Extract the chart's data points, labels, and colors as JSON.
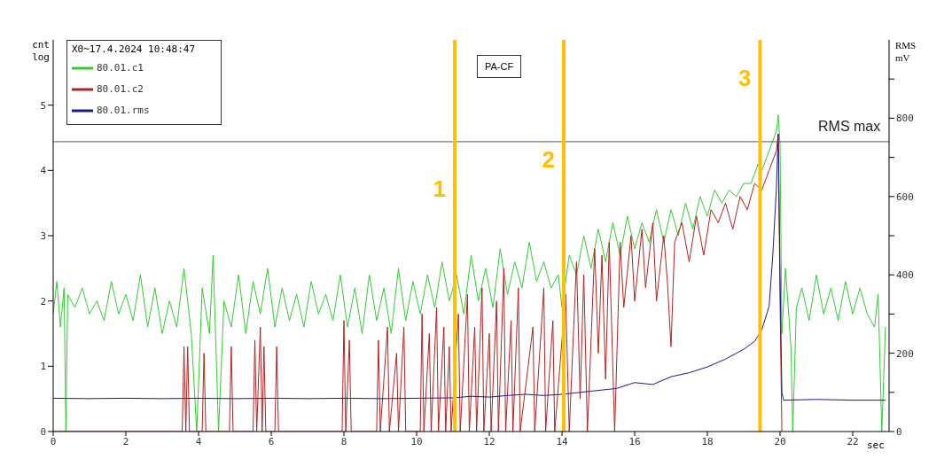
{
  "chart_data": {
    "type": "line",
    "title": "PA-CF",
    "xlabel": "sec",
    "ylabel": "cnt log",
    "y2label": "RMS mV",
    "legend_title": "X0~17.4.2024 10:48:47",
    "legend": "top left",
    "marker": "none",
    "line_style": "solid",
    "xlim": [
      0,
      23
    ],
    "xticks": [
      0,
      2,
      4,
      6,
      8,
      10,
      12,
      14,
      16,
      18,
      20,
      22
    ],
    "ylim": [
      0,
      6
    ],
    "yticks": [
      0,
      1,
      2,
      3,
      4,
      5
    ],
    "y2lim": [
      0,
      1000
    ],
    "y2ticks": [
      0,
      {
        "value": 100,
        "label": null
      },
      200,
      {
        "value": 300,
        "label": null
      },
      400,
      {
        "value": 500,
        "label": null
      },
      600,
      {
        "value": 700,
        "label": null
      },
      800,
      {
        "value": 900,
        "label": null
      }
    ],
    "series": [
      {
        "name": "80.01.c1",
        "color": "#33cc33",
        "x": [
          0,
          0.1,
          0.2,
          0.3,
          0.35,
          0.4,
          0.6,
          0.8,
          1.0,
          1.2,
          1.4,
          1.6,
          1.8,
          2.0,
          2.2,
          2.4,
          2.6,
          2.8,
          3.0,
          3.2,
          3.4,
          3.6,
          3.8,
          3.95,
          4.1,
          4.3,
          4.4,
          4.55,
          4.7,
          4.9,
          5.1,
          5.3,
          5.5,
          5.7,
          5.9,
          6.1,
          6.3,
          6.5,
          6.7,
          6.9,
          7.1,
          7.3,
          7.5,
          7.7,
          7.9,
          8.1,
          8.3,
          8.5,
          8.7,
          8.9,
          9.1,
          9.3,
          9.5,
          9.7,
          9.9,
          10.1,
          10.3,
          10.5,
          10.7,
          10.9,
          11.1,
          11.3,
          11.5,
          11.7,
          11.9,
          12.1,
          12.3,
          12.5,
          12.7,
          12.9,
          13.1,
          13.3,
          13.5,
          13.7,
          13.9,
          14.0,
          14.2,
          14.4,
          14.6,
          14.8,
          15.0,
          15.2,
          15.4,
          15.6,
          15.8,
          16.0,
          16.2,
          16.4,
          16.6,
          16.8,
          17.0,
          17.2,
          17.4,
          17.6,
          17.8,
          18.0,
          18.2,
          18.4,
          18.6,
          18.8,
          19.0,
          19.2,
          19.4,
          19.5,
          19.7,
          19.9,
          19.95,
          20.0,
          20.05,
          20.15,
          20.3,
          20.35,
          20.45,
          20.6,
          20.8,
          21.0,
          21.2,
          21.4,
          21.6,
          21.8,
          22.0,
          22.2,
          22.4,
          22.6,
          22.7,
          22.8,
          22.9
        ],
        "values": [
          1.8,
          2.3,
          1.6,
          2.2,
          0,
          2.1,
          1.9,
          2.2,
          1.8,
          2.0,
          1.7,
          2.3,
          1.8,
          2.1,
          1.7,
          2.4,
          1.6,
          2.2,
          1.5,
          2.0,
          1.6,
          2.5,
          1.5,
          0,
          2.2,
          1.5,
          2.7,
          0,
          2.0,
          1.6,
          2.4,
          1.5,
          2.3,
          1.8,
          2.5,
          1.6,
          2.2,
          1.7,
          2.1,
          1.6,
          2.3,
          1.8,
          2.1,
          1.7,
          2.4,
          1.6,
          2.2,
          1.5,
          2.4,
          1.7,
          2.2,
          1.5,
          2.5,
          1.7,
          2.3,
          1.8,
          2.4,
          1.9,
          2.6,
          2.0,
          2.4,
          1.8,
          2.7,
          2.0,
          2.5,
          1.9,
          2.8,
          2.1,
          2.6,
          2.2,
          2.9,
          2.3,
          2.6,
          2.2,
          2.4,
          1.9,
          2.7,
          2.4,
          3.0,
          2.5,
          3.1,
          2.6,
          3.2,
          2.7,
          3.3,
          2.8,
          3.2,
          2.9,
          3.4,
          2.9,
          3.4,
          3.0,
          3.5,
          3.1,
          3.6,
          3.3,
          3.7,
          3.5,
          3.7,
          3.6,
          3.8,
          3.8,
          4.1,
          4.0,
          4.3,
          4.6,
          4.85,
          4.4,
          1.5,
          2.5,
          1.3,
          0,
          1.9,
          2.2,
          1.7,
          2.4,
          1.8,
          2.2,
          1.7,
          2.3,
          1.8,
          2.2,
          1.8,
          1.6,
          2.1,
          0,
          1.6
        ]
      },
      {
        "name": "80.01.c2",
        "color": "#b22222",
        "x": [
          0,
          3.55,
          3.6,
          3.65,
          3.7,
          3.75,
          4.1,
          4.15,
          4.2,
          4.85,
          4.9,
          4.95,
          5.5,
          5.55,
          5.6,
          5.7,
          5.75,
          5.8,
          5.85,
          6.1,
          6.15,
          6.2,
          7.95,
          8.0,
          8.05,
          8.15,
          8.2,
          8.9,
          8.95,
          9.0,
          9.2,
          9.25,
          9.45,
          9.5,
          9.65,
          9.7,
          10.1,
          10.15,
          10.2,
          10.35,
          10.4,
          10.55,
          10.6,
          10.75,
          10.8,
          10.9,
          10.95,
          11.15,
          11.2,
          11.4,
          11.45,
          11.6,
          11.65,
          11.8,
          11.85,
          12.0,
          12.05,
          12.2,
          12.25,
          12.4,
          12.45,
          12.6,
          12.65,
          12.8,
          12.85,
          13.2,
          13.25,
          13.5,
          13.55,
          13.75,
          13.8,
          14.1,
          14.2,
          14.4,
          14.5,
          14.6,
          14.7,
          14.9,
          15.0,
          15.1,
          15.2,
          15.3,
          15.45,
          15.6,
          15.7,
          15.9,
          16.0,
          16.2,
          16.3,
          16.5,
          16.6,
          16.8,
          16.9,
          17.0,
          17.1,
          17.3,
          17.5,
          17.7,
          17.9,
          18.1,
          18.3,
          18.5,
          18.7,
          18.9,
          19.1,
          19.3,
          19.5,
          19.7,
          19.9,
          19.95,
          20.0,
          20.05
        ],
        "values": [
          0,
          0,
          1.3,
          0,
          1.3,
          0,
          0,
          1.2,
          0,
          0,
          1.3,
          0,
          0,
          1.4,
          0,
          1.6,
          0,
          1.3,
          0,
          0,
          1.3,
          0,
          0,
          1.7,
          0,
          1.4,
          0,
          0,
          1.4,
          0,
          1.6,
          0,
          1.2,
          0,
          1.6,
          0,
          0,
          1.8,
          0,
          1.5,
          0,
          1.9,
          0,
          1.6,
          0,
          1.3,
          0,
          1.8,
          0,
          2.1,
          0,
          1.6,
          0,
          2.2,
          0,
          1.5,
          0,
          2.0,
          0,
          2.5,
          0,
          1.7,
          0,
          2.2,
          0,
          1.6,
          0,
          2.2,
          0,
          1.7,
          0,
          2.1,
          0,
          2.6,
          0.5,
          2.4,
          0,
          2.8,
          1.2,
          2.7,
          0.8,
          2.9,
          0,
          2.9,
          1.9,
          3.0,
          2.0,
          3.1,
          2.2,
          3.2,
          2.0,
          3.0,
          2.3,
          1.3,
          2.9,
          3.2,
          2.6,
          3.3,
          2.7,
          3.4,
          3.2,
          3.5,
          3.1,
          3.6,
          3.4,
          3.8,
          3.7,
          4.0,
          4.3,
          4.55,
          2.0,
          0
        ]
      },
      {
        "name": "80.01.rms",
        "color": "#1a1a8c",
        "axis": "y2",
        "x": [
          0,
          1,
          2,
          3,
          4,
          5,
          6,
          7,
          8,
          9,
          10,
          11,
          11.5,
          12,
          12.5,
          13,
          13.5,
          14,
          14.5,
          15,
          15.5,
          16,
          16.5,
          17,
          17.5,
          18,
          18.5,
          19,
          19.3,
          19.5,
          19.7,
          19.8,
          19.9,
          19.95,
          20.0,
          20.05,
          20.1,
          21,
          22,
          22.9
        ],
        "values": [
          85,
          84,
          85,
          84,
          85,
          84,
          85,
          84,
          85,
          84,
          85,
          86,
          90,
          88,
          92,
          95,
          92,
          95,
          100,
          105,
          110,
          125,
          120,
          140,
          150,
          165,
          185,
          210,
          230,
          260,
          320,
          450,
          620,
          760,
          400,
          100,
          80,
          82,
          80,
          80
        ]
      }
    ],
    "ref_lines": [
      {
        "axis": "y2",
        "value": 740,
        "label": "RMS max",
        "color": "#555555"
      },
      {
        "axis": "x",
        "value": 11.05,
        "color": "#ffc000"
      },
      {
        "axis": "x",
        "value": 14.05,
        "color": "#ffc000"
      },
      {
        "axis": "x",
        "value": 19.45,
        "color": "#ffc000"
      }
    ],
    "annotations": [
      {
        "text": "1",
        "x": 11.05,
        "y": 3.6
      },
      {
        "text": "2",
        "x": 14.05,
        "y": 4.05
      },
      {
        "text": "3",
        "x": 19.45,
        "y": 5.3
      }
    ]
  }
}
